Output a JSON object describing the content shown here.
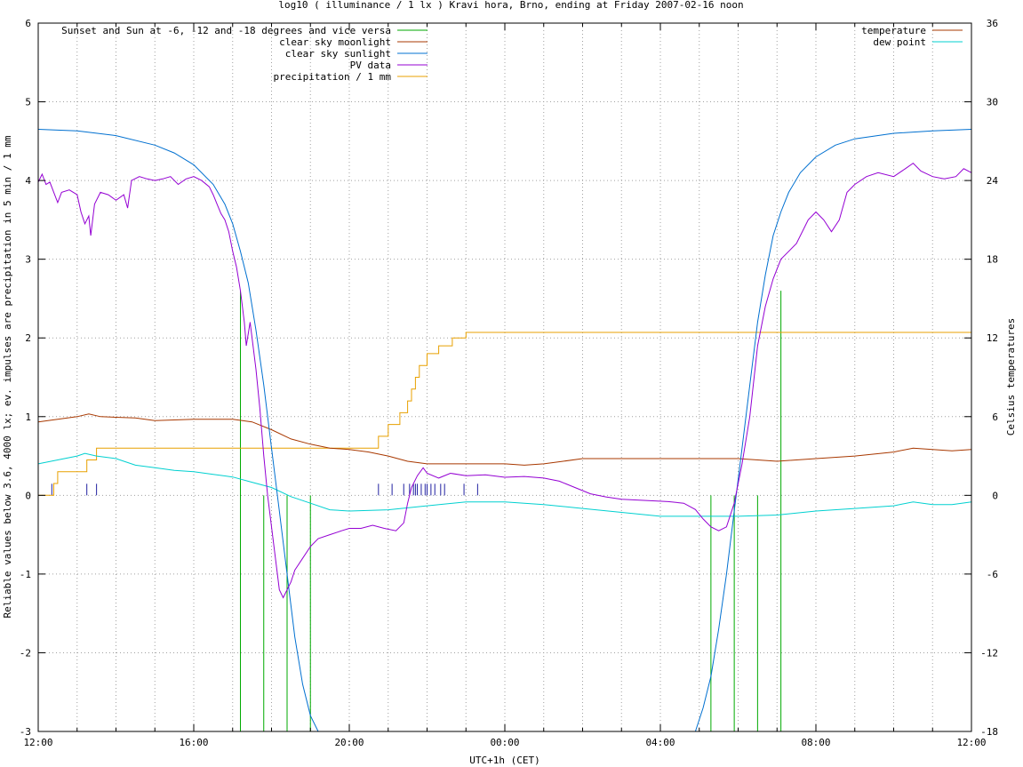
{
  "chart_data": {
    "type": "line",
    "title": "log10 ( illuminance / 1 lx ) Kravi hora, Brno, ending at Friday 2007-02-16 noon",
    "xlabel": "UTC+1h (CET)",
    "ylabel": "Reliable values below 3.6, 4000 lx; ev. impulses are precipitation in 5 min / 1 mm",
    "y2label": "Celsius temperatures",
    "x_unit": "hours since 2007-02-15 12:00 CET",
    "xlim": [
      0,
      24
    ],
    "ylim": [
      -3,
      6
    ],
    "y2lim": [
      -18,
      36
    ],
    "grid": true,
    "x_ticks": [
      {
        "v": 0,
        "label": "12:00"
      },
      {
        "v": 4,
        "label": "16:00"
      },
      {
        "v": 8,
        "label": "20:00"
      },
      {
        "v": 12,
        "label": "00:00"
      },
      {
        "v": 16,
        "label": "04:00"
      },
      {
        "v": 20,
        "label": "08:00"
      },
      {
        "v": 24,
        "label": "12:00"
      }
    ],
    "y_ticks": [
      {
        "v": -3,
        "label": "-3"
      },
      {
        "v": -2,
        "label": "-2"
      },
      {
        "v": -1,
        "label": "-1"
      },
      {
        "v": 0,
        "label": "0"
      },
      {
        "v": 1,
        "label": "1"
      },
      {
        "v": 2,
        "label": "2"
      },
      {
        "v": 3,
        "label": "3"
      },
      {
        "v": 4,
        "label": "4"
      },
      {
        "v": 5,
        "label": "5"
      },
      {
        "v": 6,
        "label": "6"
      }
    ],
    "y2_ticks": [
      {
        "v": -18,
        "label": "-18"
      },
      {
        "v": -12,
        "label": "-12"
      },
      {
        "v": -6,
        "label": "-6"
      },
      {
        "v": 0,
        "label": "0"
      },
      {
        "v": 6,
        "label": "6"
      },
      {
        "v": 12,
        "label": "12"
      },
      {
        "v": 18,
        "label": "18"
      },
      {
        "v": 24,
        "label": "24"
      },
      {
        "v": 30,
        "label": "30"
      },
      {
        "v": 36,
        "label": "36"
      }
    ],
    "legend_left": [
      {
        "name": "Sunset and Sun at -6, -12 and -18 degrees and vice versa",
        "color": "#00aa00"
      },
      {
        "name": "clear sky moonlight",
        "color": "#a83800"
      },
      {
        "name": "clear sky sunlight",
        "color": "#0070d0"
      },
      {
        "name": "PV data",
        "color": "#9400d3"
      },
      {
        "name": "precipitation / 1 mm",
        "color": "#e8a000"
      }
    ],
    "legend_right": [
      {
        "name": "temperature",
        "color": "#a83800"
      },
      {
        "name": "dew point",
        "color": "#00d0d0"
      }
    ],
    "sun_event_lines": [
      {
        "x": 5.2,
        "y_top": 2.6
      },
      {
        "x": 5.8,
        "y_top": 0
      },
      {
        "x": 6.4,
        "y_top": 0
      },
      {
        "x": 7.0,
        "y_top": 0
      },
      {
        "x": 17.3,
        "y_top": 0
      },
      {
        "x": 17.9,
        "y_top": 0
      },
      {
        "x": 18.5,
        "y_top": 0
      },
      {
        "x": 19.1,
        "y_top": 2.6
      }
    ],
    "precip_impulses": [
      0.35,
      0.4,
      1.25,
      1.5,
      8.75,
      9.1,
      9.4,
      9.55,
      9.65,
      9.7,
      9.75,
      9.85,
      9.95,
      10.0,
      10.1,
      10.2,
      10.35,
      10.45,
      10.95,
      11.3
    ],
    "precipitation_cumulative": [
      [
        0,
        0
      ],
      [
        0.35,
        0
      ],
      [
        0.4,
        0.15
      ],
      [
        0.5,
        0.3
      ],
      [
        1.1,
        0.3
      ],
      [
        1.25,
        0.45
      ],
      [
        1.4,
        0.45
      ],
      [
        1.5,
        0.6
      ],
      [
        8.6,
        0.6
      ],
      [
        8.75,
        0.75
      ],
      [
        9.0,
        0.9
      ],
      [
        9.3,
        1.05
      ],
      [
        9.5,
        1.2
      ],
      [
        9.6,
        1.35
      ],
      [
        9.7,
        1.5
      ],
      [
        9.8,
        1.65
      ],
      [
        10.0,
        1.8
      ],
      [
        10.2,
        1.8
      ],
      [
        10.3,
        1.9
      ],
      [
        10.5,
        1.9
      ],
      [
        10.65,
        2.0
      ],
      [
        10.85,
        2.0
      ],
      [
        11.0,
        2.07
      ],
      [
        24,
        2.07
      ]
    ],
    "clear_sky_sunlight": [
      [
        0,
        4.65
      ],
      [
        1,
        4.63
      ],
      [
        2,
        4.57
      ],
      [
        3,
        4.45
      ],
      [
        3.5,
        4.35
      ],
      [
        4,
        4.2
      ],
      [
        4.5,
        3.95
      ],
      [
        4.8,
        3.7
      ],
      [
        5.0,
        3.45
      ],
      [
        5.2,
        3.1
      ],
      [
        5.4,
        2.7
      ],
      [
        5.6,
        2.1
      ],
      [
        5.8,
        1.4
      ],
      [
        6.0,
        0.6
      ],
      [
        6.2,
        -0.2
      ],
      [
        6.4,
        -1.0
      ],
      [
        6.6,
        -1.8
      ],
      [
        6.8,
        -2.4
      ],
      [
        7.0,
        -2.8
      ],
      [
        7.2,
        -3.1
      ],
      [
        16.9,
        -3.1
      ],
      [
        17.1,
        -2.7
      ],
      [
        17.3,
        -2.3
      ],
      [
        17.5,
        -1.7
      ],
      [
        17.7,
        -1.0
      ],
      [
        17.9,
        -0.2
      ],
      [
        18.1,
        0.6
      ],
      [
        18.3,
        1.4
      ],
      [
        18.5,
        2.2
      ],
      [
        18.7,
        2.8
      ],
      [
        18.9,
        3.3
      ],
      [
        19.1,
        3.6
      ],
      [
        19.3,
        3.85
      ],
      [
        19.6,
        4.1
      ],
      [
        20.0,
        4.3
      ],
      [
        20.5,
        4.45
      ],
      [
        21.0,
        4.53
      ],
      [
        22.0,
        4.6
      ],
      [
        23.0,
        4.63
      ],
      [
        24,
        4.65
      ]
    ],
    "pv_data": [
      [
        0,
        3.98
      ],
      [
        0.1,
        4.08
      ],
      [
        0.2,
        3.95
      ],
      [
        0.3,
        3.98
      ],
      [
        0.4,
        3.85
      ],
      [
        0.5,
        3.72
      ],
      [
        0.6,
        3.85
      ],
      [
        0.8,
        3.88
      ],
      [
        1.0,
        3.82
      ],
      [
        1.1,
        3.6
      ],
      [
        1.2,
        3.45
      ],
      [
        1.3,
        3.55
      ],
      [
        1.35,
        3.3
      ],
      [
        1.45,
        3.7
      ],
      [
        1.6,
        3.85
      ],
      [
        1.8,
        3.82
      ],
      [
        2.0,
        3.75
      ],
      [
        2.2,
        3.82
      ],
      [
        2.3,
        3.65
      ],
      [
        2.4,
        4.0
      ],
      [
        2.6,
        4.05
      ],
      [
        2.8,
        4.02
      ],
      [
        3.0,
        4.0
      ],
      [
        3.2,
        4.02
      ],
      [
        3.4,
        4.05
      ],
      [
        3.6,
        3.95
      ],
      [
        3.8,
        4.02
      ],
      [
        4.0,
        4.05
      ],
      [
        4.2,
        4.0
      ],
      [
        4.4,
        3.92
      ],
      [
        4.5,
        3.82
      ],
      [
        4.6,
        3.7
      ],
      [
        4.7,
        3.58
      ],
      [
        4.8,
        3.5
      ],
      [
        4.9,
        3.35
      ],
      [
        5.0,
        3.1
      ],
      [
        5.1,
        2.9
      ],
      [
        5.2,
        2.6
      ],
      [
        5.3,
        2.2
      ],
      [
        5.35,
        1.9
      ],
      [
        5.45,
        2.2
      ],
      [
        5.5,
        2.0
      ],
      [
        5.6,
        1.6
      ],
      [
        5.7,
        1.1
      ],
      [
        5.8,
        0.5
      ],
      [
        5.9,
        0.0
      ],
      [
        6.0,
        -0.4
      ],
      [
        6.1,
        -0.8
      ],
      [
        6.2,
        -1.2
      ],
      [
        6.3,
        -1.3
      ],
      [
        6.4,
        -1.2
      ],
      [
        6.5,
        -1.1
      ],
      [
        6.6,
        -0.95
      ],
      [
        6.8,
        -0.8
      ],
      [
        7.0,
        -0.65
      ],
      [
        7.2,
        -0.55
      ],
      [
        7.5,
        -0.5
      ],
      [
        7.8,
        -0.45
      ],
      [
        8.0,
        -0.42
      ],
      [
        8.3,
        -0.42
      ],
      [
        8.6,
        -0.38
      ],
      [
        8.9,
        -0.42
      ],
      [
        9.2,
        -0.45
      ],
      [
        9.4,
        -0.35
      ],
      [
        9.5,
        -0.1
      ],
      [
        9.6,
        0.1
      ],
      [
        9.75,
        0.25
      ],
      [
        9.9,
        0.35
      ],
      [
        10.0,
        0.28
      ],
      [
        10.3,
        0.22
      ],
      [
        10.6,
        0.28
      ],
      [
        11.0,
        0.25
      ],
      [
        11.5,
        0.26
      ],
      [
        12.0,
        0.23
      ],
      [
        12.5,
        0.24
      ],
      [
        13.0,
        0.22
      ],
      [
        13.4,
        0.18
      ],
      [
        13.8,
        0.1
      ],
      [
        14.2,
        0.02
      ],
      [
        14.6,
        -0.02
      ],
      [
        15.0,
        -0.05
      ],
      [
        15.4,
        -0.06
      ],
      [
        15.8,
        -0.07
      ],
      [
        16.2,
        -0.08
      ],
      [
        16.6,
        -0.1
      ],
      [
        16.9,
        -0.18
      ],
      [
        17.1,
        -0.3
      ],
      [
        17.3,
        -0.4
      ],
      [
        17.5,
        -0.45
      ],
      [
        17.7,
        -0.4
      ],
      [
        17.9,
        -0.1
      ],
      [
        18.1,
        0.4
      ],
      [
        18.3,
        1.0
      ],
      [
        18.5,
        1.9
      ],
      [
        18.7,
        2.4
      ],
      [
        18.9,
        2.75
      ],
      [
        19.1,
        3.0
      ],
      [
        19.3,
        3.1
      ],
      [
        19.5,
        3.2
      ],
      [
        19.8,
        3.5
      ],
      [
        20.0,
        3.6
      ],
      [
        20.2,
        3.5
      ],
      [
        20.4,
        3.35
      ],
      [
        20.6,
        3.5
      ],
      [
        20.8,
        3.85
      ],
      [
        21.0,
        3.95
      ],
      [
        21.3,
        4.05
      ],
      [
        21.6,
        4.1
      ],
      [
        22.0,
        4.05
      ],
      [
        22.3,
        4.15
      ],
      [
        22.5,
        4.22
      ],
      [
        22.7,
        4.12
      ],
      [
        23.0,
        4.05
      ],
      [
        23.3,
        4.02
      ],
      [
        23.6,
        4.05
      ],
      [
        23.8,
        4.15
      ],
      [
        24,
        4.1
      ]
    ],
    "temperature": [
      [
        0,
        5.6
      ],
      [
        0.5,
        5.8
      ],
      [
        1.0,
        6.0
      ],
      [
        1.3,
        6.2
      ],
      [
        1.6,
        6.0
      ],
      [
        2.5,
        5.9
      ],
      [
        3.0,
        5.7
      ],
      [
        4.0,
        5.8
      ],
      [
        5.0,
        5.8
      ],
      [
        5.5,
        5.6
      ],
      [
        6.0,
        5.0
      ],
      [
        6.5,
        4.3
      ],
      [
        7.0,
        3.9
      ],
      [
        7.5,
        3.6
      ],
      [
        8.0,
        3.5
      ],
      [
        8.5,
        3.3
      ],
      [
        9.0,
        3.0
      ],
      [
        9.5,
        2.6
      ],
      [
        10.0,
        2.4
      ],
      [
        11.0,
        2.4
      ],
      [
        12.0,
        2.4
      ],
      [
        12.5,
        2.3
      ],
      [
        13.0,
        2.4
      ],
      [
        13.5,
        2.6
      ],
      [
        14.0,
        2.8
      ],
      [
        15.0,
        2.8
      ],
      [
        16.0,
        2.8
      ],
      [
        17.0,
        2.8
      ],
      [
        18.0,
        2.8
      ],
      [
        19.0,
        2.6
      ],
      [
        20.0,
        2.8
      ],
      [
        21.0,
        3.0
      ],
      [
        22.0,
        3.3
      ],
      [
        22.5,
        3.6
      ],
      [
        23.0,
        3.5
      ],
      [
        23.5,
        3.4
      ],
      [
        24,
        3.5
      ]
    ],
    "dew_point": [
      [
        0,
        2.4
      ],
      [
        0.5,
        2.7
      ],
      [
        1.0,
        3.0
      ],
      [
        1.2,
        3.2
      ],
      [
        1.5,
        3.0
      ],
      [
        2.0,
        2.8
      ],
      [
        2.5,
        2.3
      ],
      [
        3.0,
        2.1
      ],
      [
        3.5,
        1.9
      ],
      [
        4.0,
        1.8
      ],
      [
        4.5,
        1.6
      ],
      [
        5.0,
        1.4
      ],
      [
        5.5,
        1.0
      ],
      [
        6.0,
        0.6
      ],
      [
        6.5,
        -0.1
      ],
      [
        7.0,
        -0.6
      ],
      [
        7.5,
        -1.1
      ],
      [
        8.0,
        -1.2
      ],
      [
        9.0,
        -1.1
      ],
      [
        10.0,
        -0.8
      ],
      [
        11.0,
        -0.5
      ],
      [
        12.0,
        -0.5
      ],
      [
        13.0,
        -0.7
      ],
      [
        14.0,
        -1.0
      ],
      [
        15.0,
        -1.3
      ],
      [
        16.0,
        -1.6
      ],
      [
        17.0,
        -1.6
      ],
      [
        18.0,
        -1.6
      ],
      [
        19.0,
        -1.5
      ],
      [
        20.0,
        -1.2
      ],
      [
        21.0,
        -1.0
      ],
      [
        22.0,
        -0.8
      ],
      [
        22.5,
        -0.5
      ],
      [
        23.0,
        -0.7
      ],
      [
        23.5,
        -0.7
      ],
      [
        24,
        -0.5
      ]
    ]
  }
}
